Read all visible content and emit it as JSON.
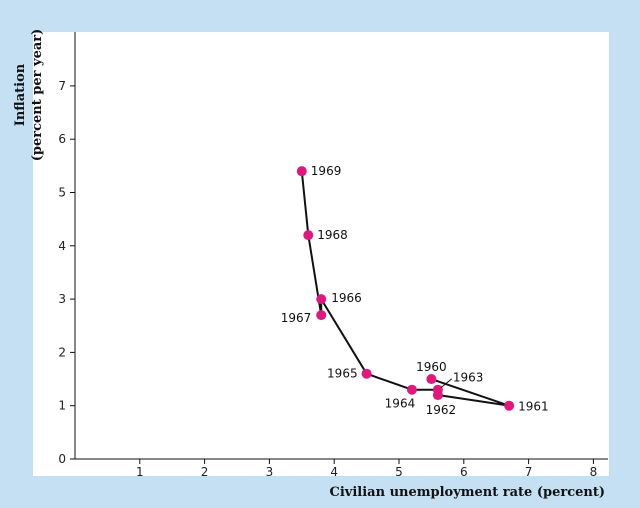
{
  "chart_data": {
    "type": "line",
    "title": "",
    "xlabel": "Civilian unemployment rate (percent)",
    "ylabel_line1": "Inflation",
    "ylabel_line2": "(percent per year)",
    "xlim": [
      0,
      8
    ],
    "ylim": [
      0,
      8
    ],
    "xticks": [
      1,
      2,
      3,
      4,
      5,
      6,
      7,
      8
    ],
    "yticks": [
      0,
      1,
      2,
      3,
      4,
      5,
      6,
      7
    ],
    "grid": false,
    "marker_color": "#e0187e",
    "line_color": "#111111",
    "points": [
      {
        "year": "1960",
        "x": 5.5,
        "y": 1.5
      },
      {
        "year": "1961",
        "x": 6.7,
        "y": 1.0
      },
      {
        "year": "1962",
        "x": 5.6,
        "y": 1.2
      },
      {
        "year": "1963",
        "x": 5.6,
        "y": 1.3
      },
      {
        "year": "1964",
        "x": 5.2,
        "y": 1.3
      },
      {
        "year": "1965",
        "x": 4.5,
        "y": 1.6
      },
      {
        "year": "1966",
        "x": 3.8,
        "y": 3.0
      },
      {
        "year": "1967",
        "x": 3.8,
        "y": 2.7
      },
      {
        "year": "1968",
        "x": 3.6,
        "y": 4.2
      },
      {
        "year": "1969",
        "x": 3.5,
        "y": 5.4
      }
    ]
  }
}
